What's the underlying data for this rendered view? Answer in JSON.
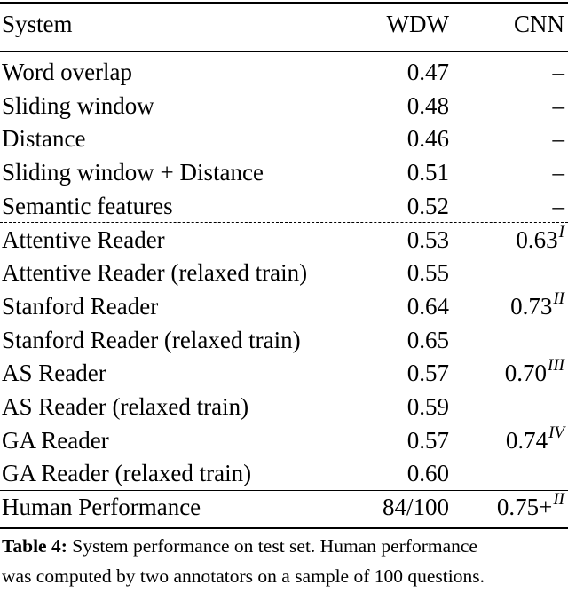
{
  "table": {
    "headers": {
      "system": "System",
      "wdw": "WDW",
      "cnn": "CNN"
    },
    "rows": [
      {
        "system": "Word overlap",
        "wdw": "0.47",
        "cnn": "–",
        "sup": ""
      },
      {
        "system": "Sliding window",
        "wdw": "0.48",
        "cnn": "–",
        "sup": ""
      },
      {
        "system": "Distance",
        "wdw": "0.46",
        "cnn": "–",
        "sup": ""
      },
      {
        "system": "Sliding window + Distance",
        "wdw": "0.51",
        "cnn": "–",
        "sup": ""
      },
      {
        "system": "Semantic features",
        "wdw": "0.52",
        "cnn": "–",
        "sup": ""
      },
      {
        "system": "Attentive Reader",
        "wdw": "0.53",
        "cnn": "0.63",
        "sup": "I"
      },
      {
        "system": "Attentive Reader (relaxed train)",
        "wdw": "0.55",
        "cnn": "",
        "sup": ""
      },
      {
        "system": "Stanford Reader",
        "wdw": "0.64",
        "cnn": "0.73",
        "sup": "II"
      },
      {
        "system": "Stanford Reader (relaxed train)",
        "wdw": "0.65",
        "cnn": "",
        "sup": ""
      },
      {
        "system": "AS Reader",
        "wdw": "0.57",
        "cnn": "0.70",
        "sup": "III"
      },
      {
        "system": "AS Reader (relaxed train)",
        "wdw": "0.59",
        "cnn": "",
        "sup": ""
      },
      {
        "system": "GA Reader",
        "wdw": "0.57",
        "cnn": "0.74",
        "sup": "IV"
      },
      {
        "system": "GA Reader (relaxed train)",
        "wdw": "0.60",
        "cnn": "",
        "sup": ""
      }
    ],
    "human": {
      "system": "Human Performance",
      "wdw": "84/100",
      "cnn": "0.75+",
      "sup": "II"
    }
  },
  "caption": {
    "label": "Table 4:",
    "line1": " System performance on test set. Human performance",
    "line2": "was computed by two annotators on a sample of 100 questions."
  }
}
